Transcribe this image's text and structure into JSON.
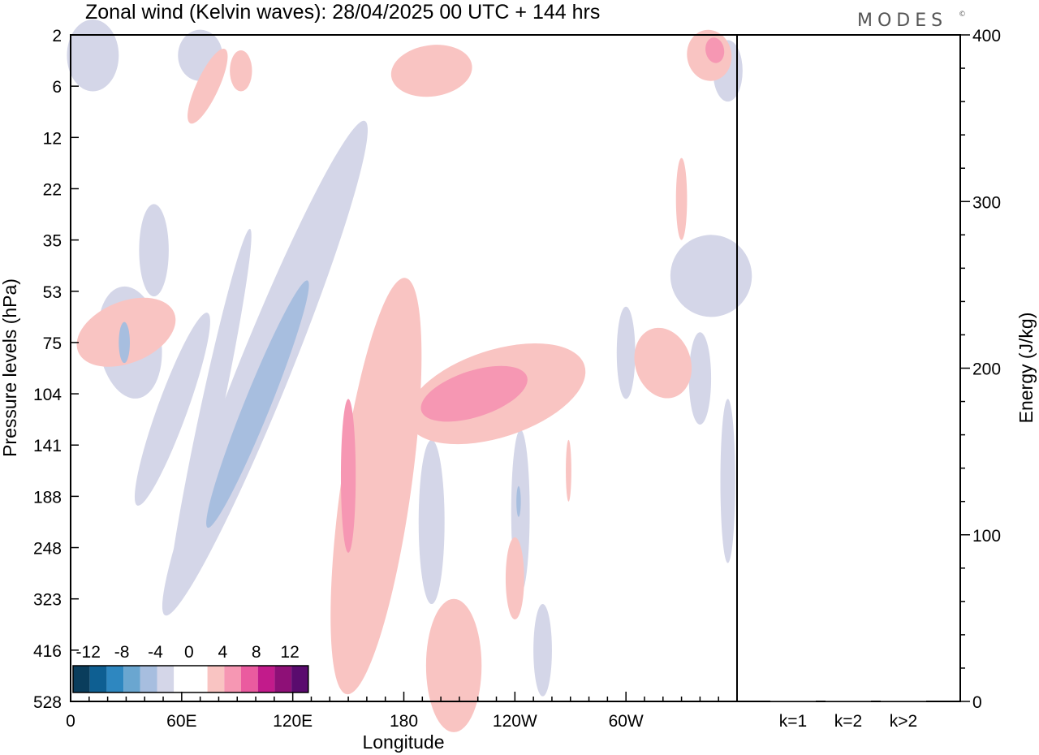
{
  "chart_data": {
    "type": "heatmap",
    "title": "Zonal wind (Kelvin waves):  28/04/2025  00 UTC  + 144 hrs",
    "brand": "MODES",
    "brand_mark": "©",
    "xlabel": "Longitude",
    "ylabel": "Pressure levels (hPa)",
    "x_ticks": [
      "0",
      "60E",
      "120E",
      "180",
      "120W",
      "60W"
    ],
    "x_tick_degrees": [
      0,
      60,
      120,
      180,
      240,
      300
    ],
    "xlim": [
      0,
      360
    ],
    "y_ticks": [
      "2",
      "6",
      "12",
      "22",
      "35",
      "53",
      "75",
      "104",
      "141",
      "188",
      "248",
      "323",
      "416",
      "528"
    ],
    "colorbar": {
      "labels": [
        "-12",
        "-8",
        "-4",
        "0",
        "4",
        "8",
        "12"
      ],
      "label_bins": [
        0,
        2,
        4,
        6,
        8,
        10,
        12
      ],
      "colors": [
        "#0a3d5c",
        "#0e5f92",
        "#2e87c0",
        "#6aa6d0",
        "#a7bedf",
        "#d4d6e8",
        "#ffffff",
        "#ffffff",
        "#f9c4c2",
        "#f697b3",
        "#ea5b9f",
        "#c21b8b",
        "#8e1077",
        "#5a0b6e"
      ]
    },
    "contours": {
      "levels": [
        "-4 to -2",
        "-6 to -4",
        "2 to 4",
        "4 to 6"
      ],
      "colors": [
        "#d4d6e8",
        "#a7bedf",
        "#f9c4c2",
        "#f697b3"
      ],
      "regions": [
        {
          "sign": "neg",
          "level": 1,
          "lon": 105,
          "lev": 6.5,
          "a": 14,
          "b": 5.2,
          "rot": 22
        },
        {
          "sign": "neg",
          "level": 2,
          "lon": 101,
          "lev": 7.2,
          "a": 7,
          "b": 2.6,
          "rot": 22
        },
        {
          "sign": "neg",
          "level": 1,
          "lon": 75,
          "lev": 7.5,
          "a": 6,
          "b": 3.8,
          "rot": 12
        },
        {
          "sign": "neg",
          "level": 1,
          "lon": 55,
          "lev": 7.3,
          "a": 8,
          "b": 2.0,
          "rot": 20
        },
        {
          "sign": "neg",
          "level": 1,
          "lon": 32,
          "lev": 6.0,
          "a": 17,
          "b": 1.1,
          "rot": -8
        },
        {
          "sign": "neg",
          "level": 2,
          "lon": 29,
          "lev": 6.0,
          "a": 3,
          "b": 0.4,
          "rot": 0
        },
        {
          "sign": "neg",
          "level": 1,
          "lon": 195,
          "lev": 9.5,
          "a": 7,
          "b": 1.6,
          "rot": 0
        },
        {
          "sign": "neg",
          "level": 1,
          "lon": 243,
          "lev": 9.3,
          "a": 5,
          "b": 1.6,
          "rot": 0
        },
        {
          "sign": "neg",
          "level": 2,
          "lon": 242,
          "lev": 9.1,
          "a": 1.2,
          "b": 0.3,
          "rot": 0
        },
        {
          "sign": "neg",
          "level": 1,
          "lon": 255,
          "lev": 12.0,
          "a": 5,
          "b": 0.9,
          "rot": 0
        },
        {
          "sign": "neg",
          "level": 1,
          "lon": 355,
          "lev": 8.7,
          "a": 4,
          "b": 1.6,
          "rot": 0
        },
        {
          "sign": "neg",
          "level": 1,
          "lon": 340,
          "lev": 6.7,
          "a": 6,
          "b": 0.9,
          "rot": 0
        },
        {
          "sign": "neg",
          "level": 1,
          "lon": 346,
          "lev": 4.7,
          "a": 22,
          "b": 0.8,
          "rot": -10
        },
        {
          "sign": "neg",
          "level": 1,
          "lon": 300,
          "lev": 6.2,
          "a": 5,
          "b": 0.9,
          "rot": 0
        },
        {
          "sign": "neg",
          "level": 1,
          "lon": 12,
          "lev": 0.4,
          "a": 14,
          "b": 0.7,
          "rot": 0
        },
        {
          "sign": "neg",
          "level": 1,
          "lon": 355,
          "lev": 0.7,
          "a": 8,
          "b": 0.6,
          "rot": 0
        },
        {
          "sign": "neg",
          "level": 1,
          "lon": 70,
          "lev": 0.4,
          "a": 12,
          "b": 0.5,
          "rot": 0
        },
        {
          "sign": "neg",
          "level": 1,
          "lon": 45,
          "lev": 4.2,
          "a": 8,
          "b": 0.9,
          "rot": 0
        },
        {
          "sign": "pos",
          "level": 1,
          "lon": 165,
          "lev": 8.8,
          "a": 19,
          "b": 4.1,
          "rot": 8
        },
        {
          "sign": "pos",
          "level": 2,
          "lon": 150,
          "lev": 8.6,
          "a": 4,
          "b": 1.5,
          "rot": 0
        },
        {
          "sign": "pos",
          "level": 1,
          "lon": 230,
          "lev": 7.0,
          "a": 50,
          "b": 0.85,
          "rot": -18
        },
        {
          "sign": "pos",
          "level": 2,
          "lon": 218,
          "lev": 7.0,
          "a": 30,
          "b": 0.45,
          "rot": -18
        },
        {
          "sign": "pos",
          "level": 1,
          "lon": 207,
          "lev": 12.3,
          "a": 15,
          "b": 1.3,
          "rot": 0
        },
        {
          "sign": "pos",
          "level": 1,
          "lon": 240,
          "lev": 10.6,
          "a": 5,
          "b": 0.8,
          "rot": 0
        },
        {
          "sign": "pos",
          "level": 1,
          "lon": 320,
          "lev": 6.4,
          "a": 15,
          "b": 0.7,
          "rot": -18
        },
        {
          "sign": "pos",
          "level": 1,
          "lon": 30,
          "lev": 5.8,
          "a": 28,
          "b": 0.6,
          "rot": -22
        },
        {
          "sign": "pos",
          "level": 1,
          "lon": 195,
          "lev": 0.7,
          "a": 22,
          "b": 0.5,
          "rot": -8
        },
        {
          "sign": "pos",
          "level": 1,
          "lon": 345,
          "lev": 0.4,
          "a": 12,
          "b": 0.5,
          "rot": -10
        },
        {
          "sign": "pos",
          "level": 2,
          "lon": 348,
          "lev": 0.3,
          "a": 5,
          "b": 0.25,
          "rot": -10
        },
        {
          "sign": "pos",
          "level": 1,
          "lon": 74,
          "lev": 1.0,
          "a": 6,
          "b": 0.8,
          "rot": 25
        },
        {
          "sign": "pos",
          "level": 1,
          "lon": 92,
          "lev": 0.7,
          "a": 6,
          "b": 0.4,
          "rot": 0
        },
        {
          "sign": "pos",
          "level": 1,
          "lon": 330,
          "lev": 3.2,
          "a": 3,
          "b": 0.8,
          "rot": 0
        },
        {
          "sign": "pos",
          "level": 1,
          "lon": 269,
          "lev": 8.5,
          "a": 1.5,
          "b": 0.6,
          "rot": 0
        }
      ]
    }
  },
  "energy_panel": {
    "ylabel": "Energy (J/kg)",
    "y_ticks": [
      "0",
      "100",
      "200",
      "300",
      "400"
    ],
    "ylim": [
      0,
      400
    ],
    "categories": [
      "k=1",
      "k=2",
      "k>2"
    ],
    "values": [
      0,
      0,
      0
    ]
  }
}
